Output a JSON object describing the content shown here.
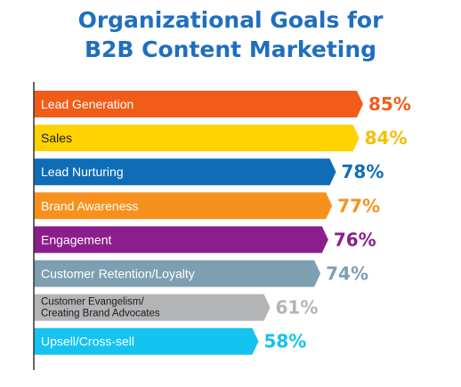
{
  "chart_data": {
    "type": "bar",
    "orientation": "horizontal",
    "title": [
      "Organizational Goals for",
      "B2B Content Marketing"
    ],
    "xlabel": "",
    "ylabel": "",
    "xlim": [
      0,
      100
    ],
    "grid": false,
    "legend": "none",
    "categories": [
      [
        "Lead Generation"
      ],
      [
        "Sales"
      ],
      [
        "Lead Nurturing"
      ],
      [
        "Brand Awareness"
      ],
      [
        "Engagement"
      ],
      [
        "Customer Retention/Loyalty"
      ],
      [
        "Customer Evangelism/",
        "Creating Brand Advocates"
      ],
      [
        "Upsell/Cross-sell"
      ]
    ],
    "values": [
      85,
      84,
      78,
      77,
      76,
      74,
      61,
      58
    ],
    "value_labels": [
      "85%",
      "84%",
      "78%",
      "77%",
      "76%",
      "74%",
      "61%",
      "58%"
    ],
    "colors": [
      "#f25c19",
      "#ffd200",
      "#0f6db8",
      "#f7911e",
      "#8c1d8c",
      "#7d9fb1",
      "#b3b4b6",
      "#14c3ef"
    ],
    "label_colors": [
      "#f25c19",
      "#f5c000",
      "#0f6db8",
      "#f7911e",
      "#8c1d8c",
      "#7d9fb1",
      "#b3b4b6",
      "#14c3ef"
    ],
    "axis_color": "#333333"
  }
}
